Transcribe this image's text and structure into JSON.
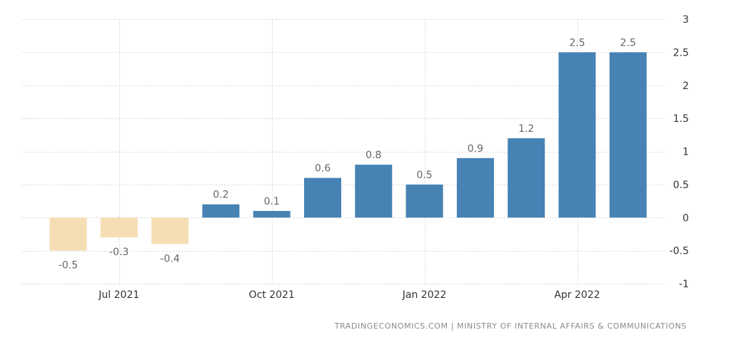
{
  "chart_data": {
    "type": "bar",
    "categories": [
      "Jun 2021",
      "Jul 2021",
      "Aug 2021",
      "Sep 2021",
      "Oct 2021",
      "Nov 2021",
      "Dec 2021",
      "Jan 2022",
      "Feb 2022",
      "Mar 2022",
      "Apr 2022",
      "May 2022"
    ],
    "values": [
      -0.5,
      -0.3,
      -0.4,
      0.2,
      0.1,
      0.6,
      0.8,
      0.5,
      0.9,
      1.2,
      2.5,
      2.5
    ],
    "data_labels": [
      "-0.5",
      "-0.3",
      "-0.4",
      "0.2",
      "0.1",
      "0.6",
      "0.8",
      "0.5",
      "0.9",
      "1.2",
      "2.5",
      "2.5"
    ],
    "x_ticks": [
      {
        "category": "Jul 2021",
        "label": "Jul 2021"
      },
      {
        "category": "Oct 2021",
        "label": "Oct 2021"
      },
      {
        "category": "Jan 2022",
        "label": "Jan 2022"
      },
      {
        "category": "Apr 2022",
        "label": "Apr 2022"
      }
    ],
    "y_ticks": [
      {
        "value": 3,
        "label": "3"
      },
      {
        "value": 2.5,
        "label": "2.5"
      },
      {
        "value": 2,
        "label": "2"
      },
      {
        "value": 1.5,
        "label": "1.5"
      },
      {
        "value": 1,
        "label": "1"
      },
      {
        "value": 0.5,
        "label": "0.5"
      },
      {
        "value": 0,
        "label": "0"
      },
      {
        "value": -0.5,
        "label": "-0.5"
      },
      {
        "value": -1,
        "label": "-1"
      }
    ],
    "ylim": [
      -1,
      3
    ],
    "y_axis_position": "right",
    "grid": true,
    "colors": {
      "positive": "#4682b4",
      "negative": "#f5deb3"
    },
    "source": "TRADINGECONOMICS.COM | MINISTRY OF INTERNAL AFFAIRS & COMMUNICATIONS"
  }
}
